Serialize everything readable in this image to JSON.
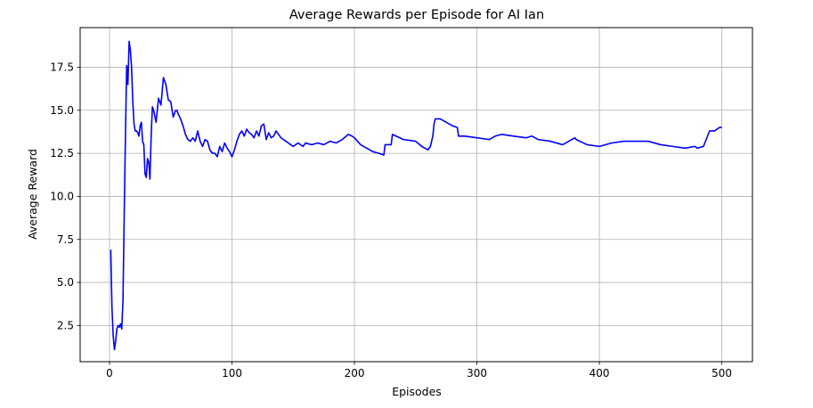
{
  "chart_data": {
    "type": "line",
    "title": "Average Rewards per Episode for AI Ian",
    "xlabel": "Episodes",
    "ylabel": "Average Reward",
    "xlim": [
      -24,
      525
    ],
    "ylim": [
      0.4,
      19.8
    ],
    "xticks": [
      0,
      100,
      200,
      300,
      400,
      500
    ],
    "xtick_labels": [
      "0",
      "100",
      "200",
      "300",
      "400",
      "500"
    ],
    "yticks": [
      2.5,
      5.0,
      7.5,
      10.0,
      12.5,
      15.0,
      17.5
    ],
    "ytick_labels": [
      "2.5",
      "5.0",
      "7.5",
      "10.0",
      "12.5",
      "15.0",
      "17.5"
    ],
    "grid": true,
    "line_color": "#0000ff",
    "series": [
      {
        "x": [
          1,
          2,
          3,
          4,
          5,
          6,
          7,
          8,
          9,
          10,
          11,
          12,
          13,
          14,
          15,
          16,
          17,
          18,
          19,
          20,
          21,
          22,
          23,
          24,
          25,
          26,
          27,
          28,
          29,
          30,
          31,
          32,
          33,
          34,
          35,
          36,
          38,
          40,
          42,
          44,
          45,
          46,
          48,
          50,
          52,
          54,
          55,
          56,
          58,
          60,
          62,
          64,
          66,
          68,
          70,
          72,
          74,
          76,
          78,
          80,
          82,
          84,
          86,
          88,
          90,
          92,
          94,
          96,
          98,
          100,
          102,
          104,
          106,
          108,
          110,
          112,
          114,
          116,
          118,
          120,
          122,
          124,
          126,
          128,
          130,
          132,
          134,
          136,
          138,
          140,
          142,
          144,
          146,
          148,
          150,
          152,
          154,
          156,
          158,
          160,
          165,
          170,
          175,
          180,
          185,
          190,
          195,
          198,
          200,
          205,
          210,
          215,
          220,
          224,
          225,
          230,
          231,
          240,
          250,
          255,
          260,
          262,
          264,
          265,
          266,
          270,
          275,
          280,
          284,
          285,
          290,
          300,
          310,
          315,
          320,
          330,
          340,
          345,
          350,
          360,
          370,
          375,
          380,
          381,
          390,
          400,
          410,
          420,
          430,
          440,
          450,
          460,
          470,
          478,
          480,
          485,
          490,
          494,
          496,
          498,
          500
        ],
        "values": [
          6.9,
          3.5,
          1.9,
          1.1,
          1.6,
          2.3,
          2.5,
          2.4,
          2.6,
          2.3,
          4.0,
          9.0,
          13.5,
          17.6,
          16.5,
          19.0,
          18.5,
          17.5,
          15.5,
          14.2,
          13.8,
          13.8,
          13.7,
          13.5,
          14.1,
          14.3,
          13.2,
          13.0,
          11.3,
          11.1,
          12.2,
          12.0,
          11.0,
          13.5,
          15.2,
          15.0,
          14.3,
          15.7,
          15.3,
          16.9,
          16.7,
          16.5,
          15.6,
          15.5,
          14.6,
          15.0,
          15.0,
          14.8,
          14.5,
          14.1,
          13.6,
          13.3,
          13.2,
          13.4,
          13.2,
          13.8,
          13.2,
          12.9,
          13.3,
          13.2,
          12.7,
          12.5,
          12.5,
          12.3,
          12.9,
          12.6,
          13.1,
          12.8,
          12.6,
          12.3,
          12.7,
          13.2,
          13.6,
          13.8,
          13.5,
          13.9,
          13.7,
          13.6,
          13.4,
          13.8,
          13.5,
          14.1,
          14.2,
          13.3,
          13.7,
          13.4,
          13.5,
          13.8,
          13.6,
          13.4,
          13.3,
          13.2,
          13.1,
          13.0,
          12.9,
          13.0,
          13.1,
          13.0,
          12.9,
          13.1,
          13.0,
          13.1,
          13.0,
          13.2,
          13.1,
          13.3,
          13.6,
          13.5,
          13.4,
          13.0,
          12.8,
          12.6,
          12.5,
          12.4,
          13.0,
          13.0,
          13.6,
          13.3,
          13.2,
          12.9,
          12.7,
          12.9,
          13.5,
          14.2,
          14.5,
          14.5,
          14.3,
          14.1,
          14.0,
          13.5,
          13.5,
          13.4,
          13.3,
          13.5,
          13.6,
          13.5,
          13.4,
          13.5,
          13.3,
          13.2,
          13.0,
          13.2,
          13.4,
          13.3,
          13.0,
          12.9,
          13.1,
          13.2,
          13.2,
          13.2,
          13.0,
          12.9,
          12.8,
          12.9,
          12.8,
          12.9,
          13.8,
          13.8,
          13.9,
          14.0,
          14.0
        ]
      }
    ]
  }
}
